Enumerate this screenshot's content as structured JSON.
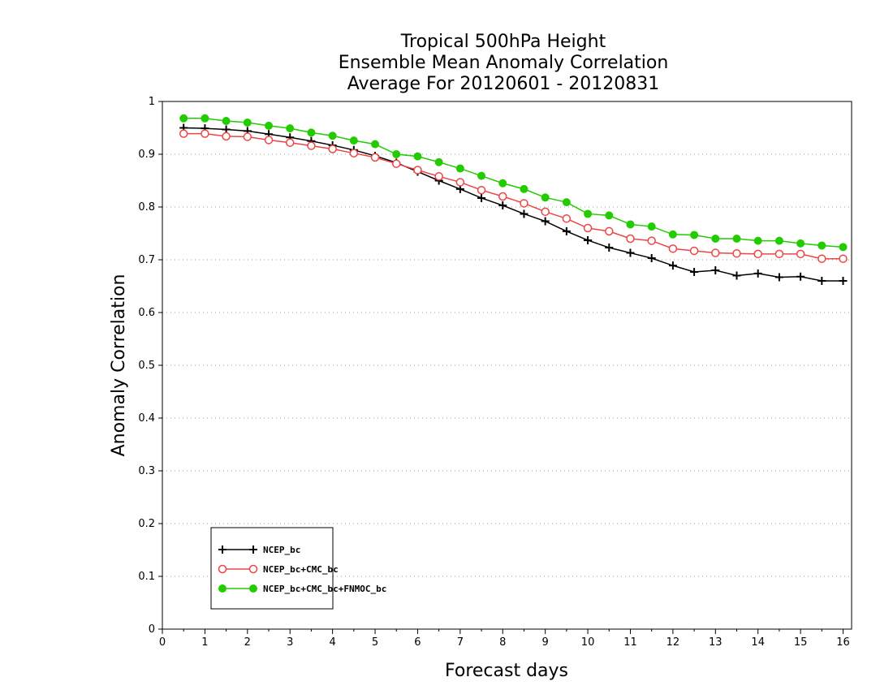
{
  "chart_data": {
    "type": "line",
    "title_lines": [
      "Tropical 500hPa Height",
      "Ensemble Mean Anomaly Correlation",
      "Average For 20120601 - 20120831"
    ],
    "xlabel": "Forecast days",
    "ylabel": "Anomaly Correlation",
    "xlim": [
      0,
      16.2
    ],
    "ylim": [
      0,
      1
    ],
    "xticks": [
      "0",
      "1",
      "2",
      "3",
      "4",
      "5",
      "6",
      "7",
      "8",
      "9",
      "10",
      "11",
      "12",
      "13",
      "14",
      "15",
      "16"
    ],
    "yticks": [
      "0",
      "0.1",
      "0.2",
      "0.3",
      "0.4",
      "0.5",
      "0.6",
      "0.7",
      "0.8",
      "0.9",
      "1"
    ],
    "grid": true,
    "legend_placement": "bottom-left",
    "x": [
      0.5,
      1,
      1.5,
      2,
      2.5,
      3,
      3.5,
      4,
      4.5,
      5,
      5.5,
      6,
      6.5,
      7,
      7.5,
      8,
      8.5,
      9,
      9.5,
      10,
      10.5,
      11,
      11.5,
      12,
      12.5,
      13,
      13.5,
      14,
      14.5,
      15,
      15.5,
      16
    ],
    "series": [
      {
        "name": "NCEP_bc",
        "color": "#000000",
        "marker": "plus",
        "values": [
          0.95,
          0.949,
          0.947,
          0.944,
          0.938,
          0.932,
          0.925,
          0.917,
          0.908,
          0.897,
          0.884,
          0.867,
          0.85,
          0.834,
          0.817,
          0.803,
          0.787,
          0.773,
          0.754,
          0.737,
          0.723,
          0.713,
          0.703,
          0.689,
          0.677,
          0.68,
          0.67,
          0.674,
          0.667,
          0.668,
          0.66,
          0.66
        ]
      },
      {
        "name": "NCEP_bc+CMC_bc",
        "color": "#ee4444",
        "marker": "open-circle",
        "values": [
          0.939,
          0.939,
          0.934,
          0.933,
          0.927,
          0.922,
          0.916,
          0.91,
          0.902,
          0.894,
          0.882,
          0.87,
          0.858,
          0.847,
          0.832,
          0.82,
          0.807,
          0.791,
          0.778,
          0.76,
          0.754,
          0.74,
          0.736,
          0.721,
          0.717,
          0.713,
          0.712,
          0.711,
          0.711,
          0.711,
          0.702,
          0.702
        ]
      },
      {
        "name": "NCEP_bc+CMC_bc+FNMOC_bc",
        "color": "#22cc00",
        "marker": "filled-circle",
        "values": [
          0.968,
          0.968,
          0.963,
          0.96,
          0.954,
          0.949,
          0.941,
          0.935,
          0.926,
          0.919,
          0.9,
          0.896,
          0.885,
          0.873,
          0.859,
          0.845,
          0.834,
          0.818,
          0.809,
          0.787,
          0.784,
          0.767,
          0.763,
          0.748,
          0.747,
          0.74,
          0.74,
          0.736,
          0.736,
          0.731,
          0.727,
          0.724
        ]
      }
    ]
  }
}
